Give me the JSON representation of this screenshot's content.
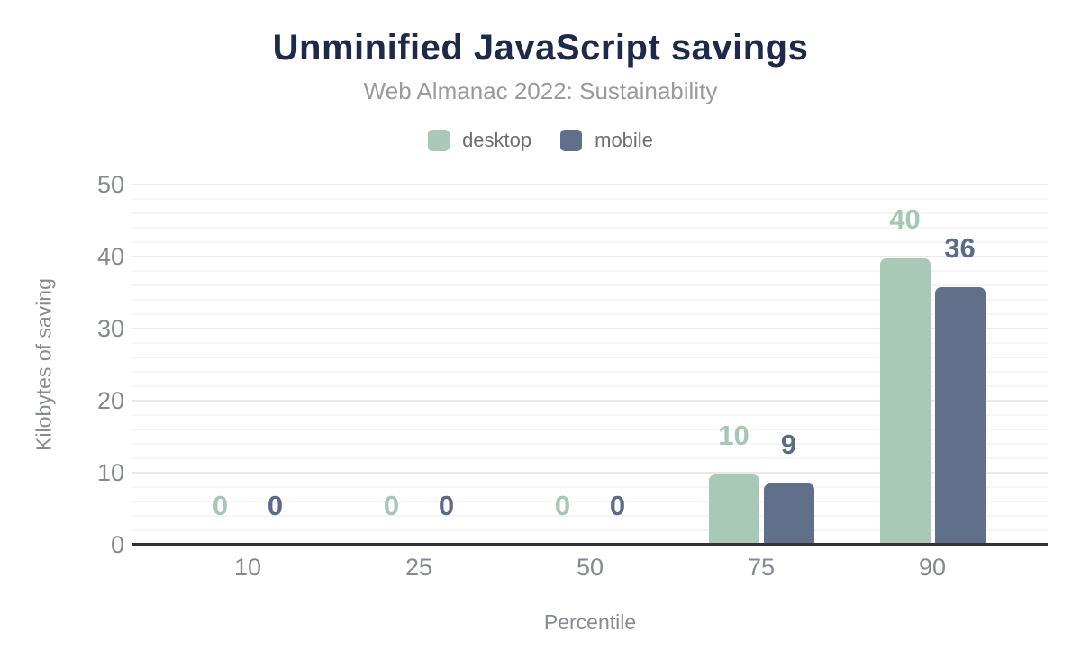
{
  "header": {
    "title": "Unminified JavaScript savings",
    "subtitle": "Web Almanac 2022: Sustainability"
  },
  "legend": {
    "items": [
      {
        "label": "desktop",
        "color": "#a8c9b7"
      },
      {
        "label": "mobile",
        "color": "#61708a"
      }
    ]
  },
  "chart_data": {
    "type": "bar",
    "title": "Unminified JavaScript savings",
    "subtitle": "Web Almanac 2022: Sustainability",
    "categories": [
      "10",
      "25",
      "50",
      "75",
      "90"
    ],
    "series": [
      {
        "name": "desktop",
        "color": "#a8c9b7",
        "label_color": "#a5c7b4",
        "values": [
          0,
          0,
          0,
          9.7,
          39.7
        ],
        "labels": [
          "0",
          "0",
          "0",
          "10",
          "40"
        ]
      },
      {
        "name": "mobile",
        "color": "#61708a",
        "label_color": "#5a6a87",
        "values": [
          0,
          0,
          0,
          8.5,
          35.8
        ],
        "labels": [
          "0",
          "0",
          "0",
          "9",
          "36"
        ]
      }
    ],
    "xlabel": "Percentile",
    "ylabel": "Kilobytes of saving",
    "ylim": [
      0,
      50
    ],
    "yticks": [
      0,
      10,
      20,
      30,
      40,
      50
    ],
    "grid": {
      "minor_step": 2,
      "major_step": 10,
      "minor_color": "#f5f5f5",
      "major_color": "#eaeaea"
    },
    "axis_line_color": "#2f3136",
    "legend_position": "top",
    "background": "#ffffff"
  }
}
